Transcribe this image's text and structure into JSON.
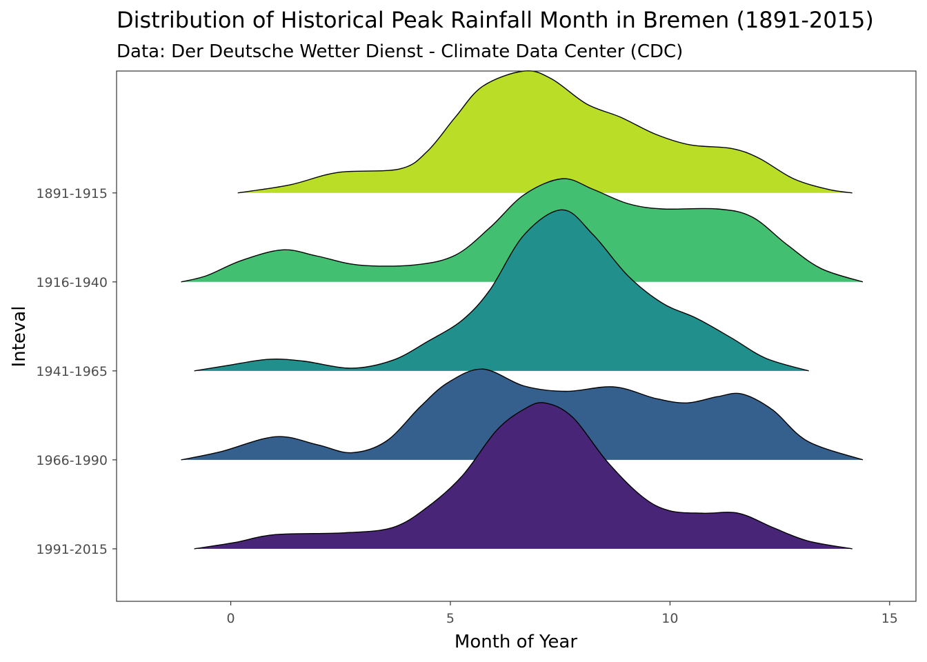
{
  "chart_data": {
    "type": "ridgeline",
    "title": "Distribution of Historical Peak Rainfall Month in Bremen (1891-2015)",
    "subtitle": "Data: Der Deutsche Wetter Dienst - Climate Data Center (CDC)",
    "xlabel": "Month of Year",
    "ylabel": "Inteval",
    "xlim": [
      -2.6,
      15.6
    ],
    "ylim": [
      -0.59,
      5.37
    ],
    "xticks": [
      0,
      5,
      10,
      15
    ],
    "xtick_labels": [
      "0",
      "5",
      "10",
      "15"
    ],
    "grid": false,
    "series": [
      {
        "name": "1891-1915",
        "color": "#BADE28",
        "x": [
          0.16,
          1.34,
          2.44,
          3.85,
          4.48,
          5.11,
          5.74,
          6.68,
          7.31,
          8.1,
          8.88,
          9.67,
          10.46,
          11.4,
          12.03,
          12.81,
          13.6,
          14.15
        ],
        "density": [
          0,
          0.09,
          0.23,
          0.27,
          0.47,
          0.85,
          1.2,
          1.37,
          1.28,
          1.0,
          0.85,
          0.66,
          0.54,
          0.5,
          0.39,
          0.16,
          0.04,
          0
        ]
      },
      {
        "name": "1916-1940",
        "color": "#43BF71",
        "x": [
          -1.13,
          -0.55,
          0.24,
          1.18,
          1.97,
          2.91,
          4.17,
          5.11,
          5.9,
          6.68,
          7.55,
          8.25,
          9.04,
          9.83,
          11.08,
          11.87,
          12.66,
          13.44,
          14.39
        ],
        "density": [
          0,
          0.07,
          0.24,
          0.36,
          0.29,
          0.19,
          0.19,
          0.3,
          0.61,
          0.98,
          1.16,
          1.04,
          0.88,
          0.82,
          0.82,
          0.73,
          0.42,
          0.15,
          0
        ]
      },
      {
        "name": "1941-1965",
        "color": "#21908C",
        "x": [
          -0.83,
          -0.08,
          0.86,
          1.65,
          2.75,
          3.69,
          4.48,
          5.27,
          5.9,
          6.68,
          7.55,
          8.25,
          9.04,
          9.83,
          10.61,
          11.4,
          12.19,
          13.16
        ],
        "density": [
          0,
          0.06,
          0.13,
          0.11,
          0.03,
          0.12,
          0.33,
          0.57,
          0.91,
          1.53,
          1.81,
          1.53,
          1.07,
          0.76,
          0.59,
          0.37,
          0.14,
          0
        ]
      },
      {
        "name": "1966-1990",
        "color": "#355F8D",
        "x": [
          -1.13,
          -0.24,
          1.02,
          1.97,
          2.75,
          3.54,
          4.32,
          4.95,
          5.74,
          6.68,
          7.63,
          8.73,
          9.67,
          10.38,
          11.08,
          11.64,
          12.34,
          13.13,
          14.39
        ],
        "density": [
          0,
          0.09,
          0.26,
          0.17,
          0.08,
          0.21,
          0.6,
          0.87,
          1.02,
          0.83,
          0.77,
          0.82,
          0.69,
          0.64,
          0.71,
          0.74,
          0.56,
          0.21,
          0
        ]
      },
      {
        "name": "1991-2015",
        "color": "#482576",
        "x": [
          -0.83,
          0.08,
          1.02,
          2.59,
          3.69,
          4.48,
          5.27,
          6.05,
          6.68,
          7.15,
          7.78,
          8.57,
          9.36,
          9.98,
          10.77,
          11.56,
          12.34,
          13.13,
          14.15
        ],
        "density": [
          0,
          0.07,
          0.16,
          0.18,
          0.24,
          0.47,
          0.82,
          1.33,
          1.57,
          1.64,
          1.48,
          0.98,
          0.59,
          0.43,
          0.4,
          0.4,
          0.24,
          0.09,
          0
        ]
      }
    ]
  }
}
